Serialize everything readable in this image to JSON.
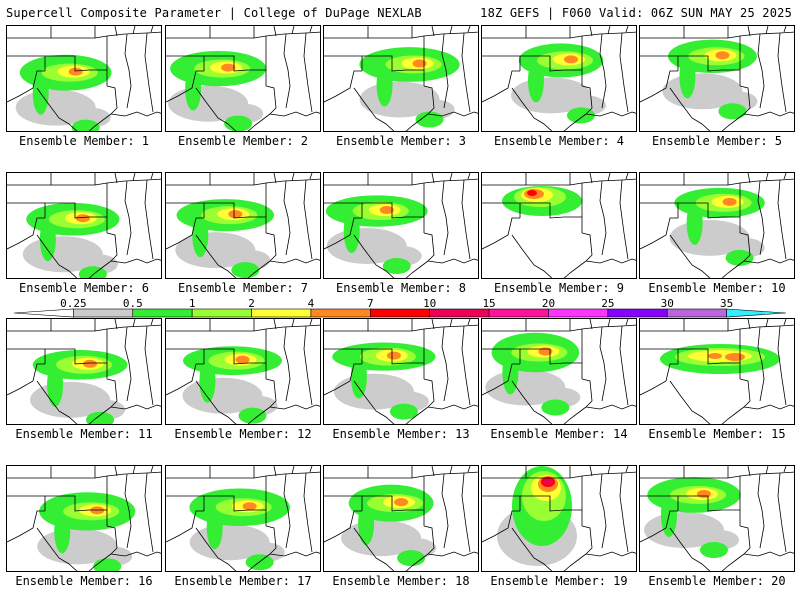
{
  "header": {
    "title": "Supercell Composite Parameter | College of DuPage NEXLAB",
    "run_info": "18Z GEFS | F060 Valid: 06Z SUN MAY 25 2025"
  },
  "colorbar": {
    "ticks": [
      "0.25",
      "0.5",
      "1",
      "2",
      "4",
      "7",
      "10",
      "15",
      "20",
      "25",
      "30",
      "35"
    ],
    "colors": [
      "#cccccc",
      "#33ee33",
      "#99ff33",
      "#ffff33",
      "#ff8822",
      "#ff0000",
      "#ee0055",
      "#ff1199",
      "#ff33ff",
      "#8800ff",
      "#bb66dd",
      "#33eeff"
    ],
    "arrow_left_color": "#ffffff"
  },
  "members": [
    {
      "label": "Ensemble Member: 1"
    },
    {
      "label": "Ensemble Member: 2"
    },
    {
      "label": "Ensemble Member: 3"
    },
    {
      "label": "Ensemble Member: 4"
    },
    {
      "label": "Ensemble Member: 5"
    },
    {
      "label": "Ensemble Member: 6"
    },
    {
      "label": "Ensemble Member: 7"
    },
    {
      "label": "Ensemble Member: 8"
    },
    {
      "label": "Ensemble Member: 9"
    },
    {
      "label": "Ensemble Member: 10"
    },
    {
      "label": "Ensemble Member: 11"
    },
    {
      "label": "Ensemble Member: 12"
    },
    {
      "label": "Ensemble Member: 13"
    },
    {
      "label": "Ensemble Member: 14"
    },
    {
      "label": "Ensemble Member: 15"
    },
    {
      "label": "Ensemble Member: 16"
    },
    {
      "label": "Ensemble Member: 17"
    },
    {
      "label": "Ensemble Member: 18"
    },
    {
      "label": "Ensemble Member: 19"
    },
    {
      "label": "Ensemble Member: 20"
    }
  ]
}
